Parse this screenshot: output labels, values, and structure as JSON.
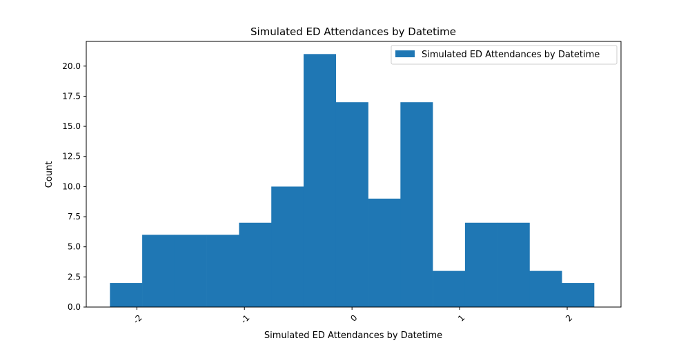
{
  "chart_data": {
    "type": "bar",
    "title": "Simulated ED Attendances by Datetime",
    "xlabel": "Simulated ED Attendances by Datetime",
    "ylabel": "Count",
    "legend": [
      "Simulated ED Attendances by Datetime"
    ],
    "legend_position": "top-right",
    "grid": false,
    "bar_color": "#1f77b4",
    "xlim": [
      -2.47,
      2.5
    ],
    "ylim": [
      0,
      22.05
    ],
    "bin_edges": [
      -2.25,
      -1.95,
      -1.65,
      -1.35,
      -1.05,
      -0.75,
      -0.45,
      -0.15,
      0.15,
      0.45,
      0.75,
      1.05,
      1.35,
      1.65,
      1.95,
      2.25
    ],
    "values": [
      2,
      6,
      6,
      6,
      7,
      10,
      21,
      17,
      9,
      17,
      3,
      7,
      7,
      3,
      2
    ],
    "x_ticks": [
      -2,
      -1,
      0,
      1,
      2
    ],
    "x_tick_labels": [
      "-2",
      "-1",
      "0",
      "1",
      "2"
    ],
    "x_tick_rotation": 45,
    "y_ticks": [
      0,
      2.5,
      5,
      7.5,
      10,
      12.5,
      15,
      17.5,
      20
    ],
    "y_tick_labels": [
      "0.0",
      "2.5",
      "5.0",
      "7.5",
      "10.0",
      "12.5",
      "15.0",
      "17.5",
      "20.0"
    ]
  }
}
